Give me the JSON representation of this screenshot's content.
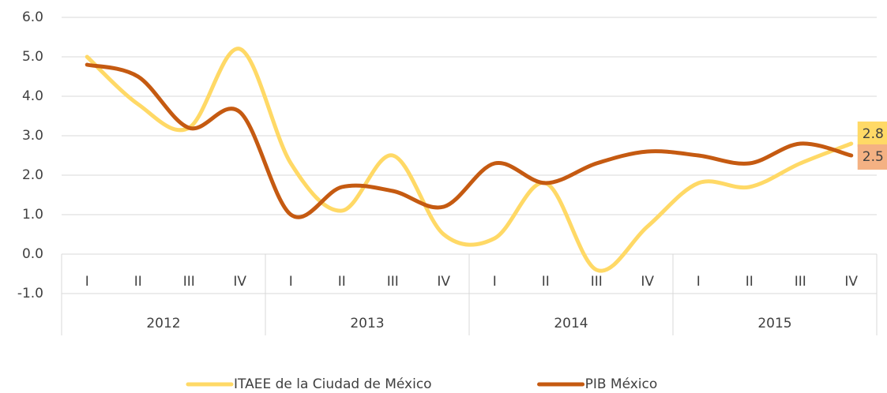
{
  "chart_data": {
    "type": "line",
    "categories": [
      "I",
      "II",
      "III",
      "IV",
      "I",
      "II",
      "III",
      "IV",
      "I",
      "II",
      "III",
      "IV",
      "I",
      "II",
      "III",
      "IV"
    ],
    "groups": [
      "2012",
      "2013",
      "2014",
      "2015"
    ],
    "series": [
      {
        "name": "ITAEE de la Ciudad de México",
        "color": "#ffd966",
        "label_color": "#ffd966",
        "values": [
          5.0,
          3.8,
          3.2,
          5.2,
          2.3,
          1.1,
          2.5,
          0.5,
          0.4,
          1.8,
          -0.4,
          0.7,
          1.8,
          1.7,
          2.3,
          2.8
        ]
      },
      {
        "name": "PIB México",
        "color": "#c55a11",
        "label_color": "#f4b183",
        "values": [
          4.8,
          4.5,
          3.2,
          3.6,
          1.0,
          1.7,
          1.6,
          1.2,
          2.3,
          1.8,
          2.3,
          2.6,
          2.5,
          2.3,
          2.8,
          2.5
        ]
      }
    ],
    "ylim": [
      -1,
      6
    ],
    "yticks": [
      {
        "value": -1,
        "label": "-1.0"
      },
      {
        "value": 0,
        "label": "0.0"
      },
      {
        "value": 1,
        "label": "1.0"
      },
      {
        "value": 2,
        "label": "2.0"
      },
      {
        "value": 3,
        "label": "3.0"
      },
      {
        "value": 4,
        "label": "4.0"
      },
      {
        "value": 5,
        "label": "5.0"
      },
      {
        "value": 6,
        "label": "6.0"
      }
    ],
    "grid": true,
    "legend": "bottom"
  }
}
